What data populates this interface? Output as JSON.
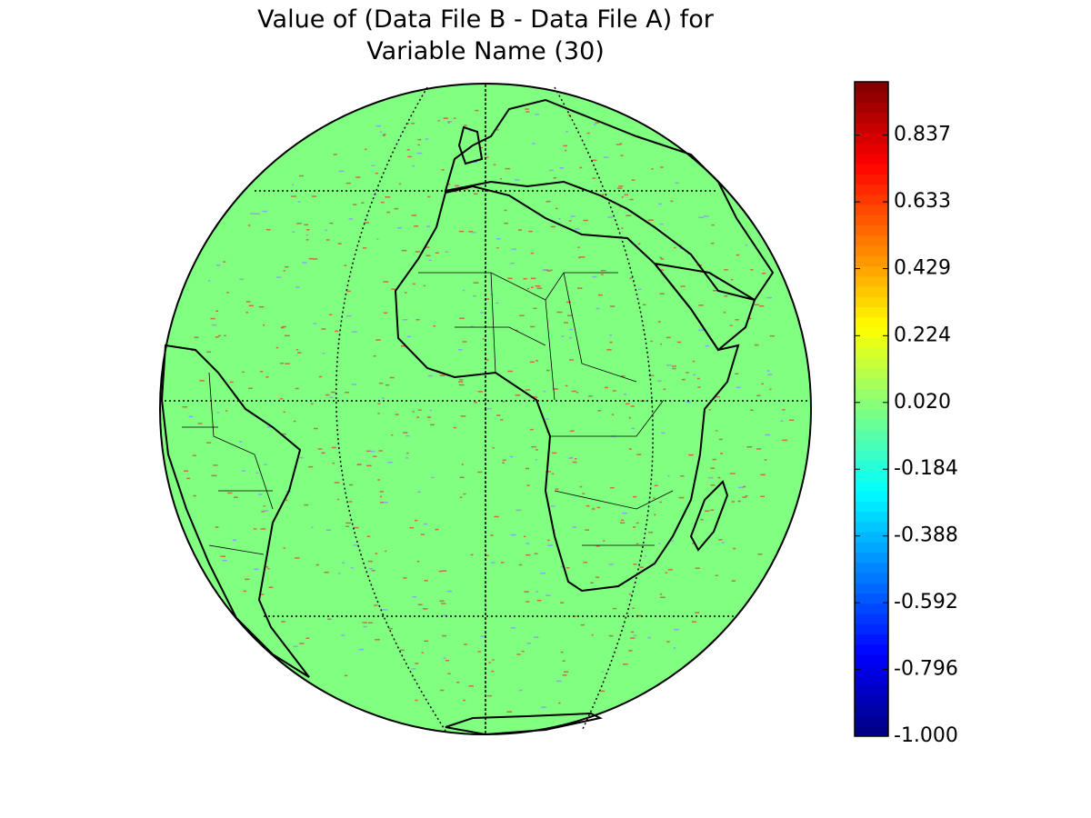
{
  "title": "Value of (Data File B - Data File A) for\nVariable Name (30)",
  "colorbar": {
    "colormap": "jet",
    "lim": [
      -1,
      1
    ],
    "ticks": [
      {
        "value": -1,
        "label": "-1.000"
      },
      -0.796,
      -0.592,
      -0.388,
      -0.184,
      {
        "value": 0.02,
        "label": "0.020"
      },
      0.224,
      0.429,
      0.633,
      0.837
    ]
  }
}
